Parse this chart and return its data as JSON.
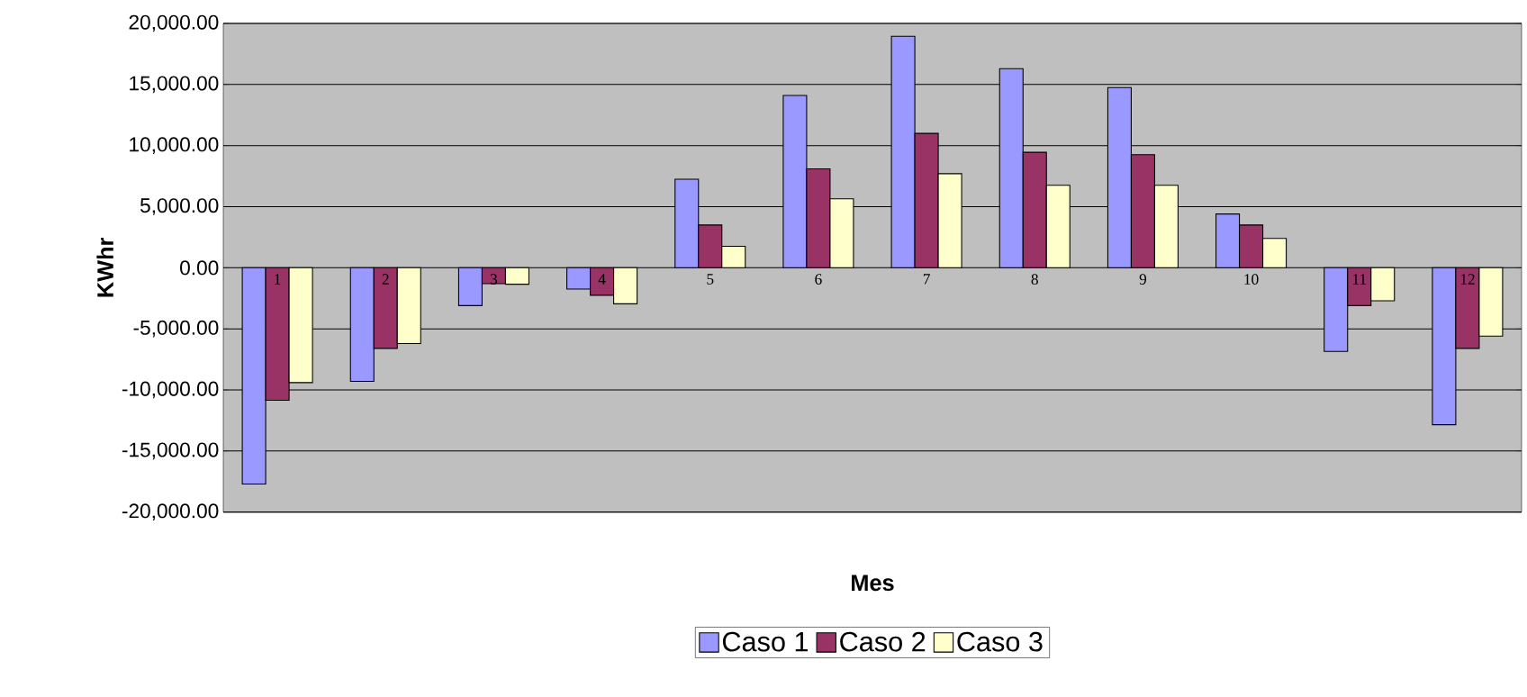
{
  "chart_data": {
    "type": "bar",
    "xlabel": "Mes",
    "ylabel": "KWhr",
    "categories": [
      "1",
      "2",
      "3",
      "4",
      "5",
      "6",
      "7",
      "8",
      "9",
      "10",
      "11",
      "12"
    ],
    "series": [
      {
        "name": "Caso 1",
        "color": "#9999ff",
        "values": [
          -17700,
          -9300,
          -3100,
          -1750,
          7250,
          14100,
          18950,
          16300,
          14750,
          4400,
          -6850,
          -12850
        ]
      },
      {
        "name": "Caso 2",
        "color": "#993366",
        "values": [
          -10850,
          -6600,
          -1300,
          -2250,
          3500,
          8100,
          11000,
          9450,
          9250,
          3500,
          -3100,
          -6600
        ]
      },
      {
        "name": "Caso 3",
        "color": "#ffffcc",
        "values": [
          -9400,
          -6200,
          -1350,
          -2950,
          1750,
          5650,
          7700,
          6750,
          6750,
          2400,
          -2700,
          -5600
        ]
      }
    ],
    "ylim": [
      -20000,
      20000
    ],
    "yticks": [
      {
        "value": -20000,
        "label": "-20,000.00"
      },
      {
        "value": -15000,
        "label": "-15,000.00"
      },
      {
        "value": -10000,
        "label": "-10,000.00"
      },
      {
        "value": -5000,
        "label": "-5,000.00"
      },
      {
        "value": 0,
        "label": "0.00"
      },
      {
        "value": 5000,
        "label": "5,000.00"
      },
      {
        "value": 10000,
        "label": "10,000.00"
      },
      {
        "value": 15000,
        "label": "15,000.00"
      },
      {
        "value": 20000,
        "label": "20,000.00"
      }
    ],
    "grid": "y",
    "legend": "bottom"
  }
}
